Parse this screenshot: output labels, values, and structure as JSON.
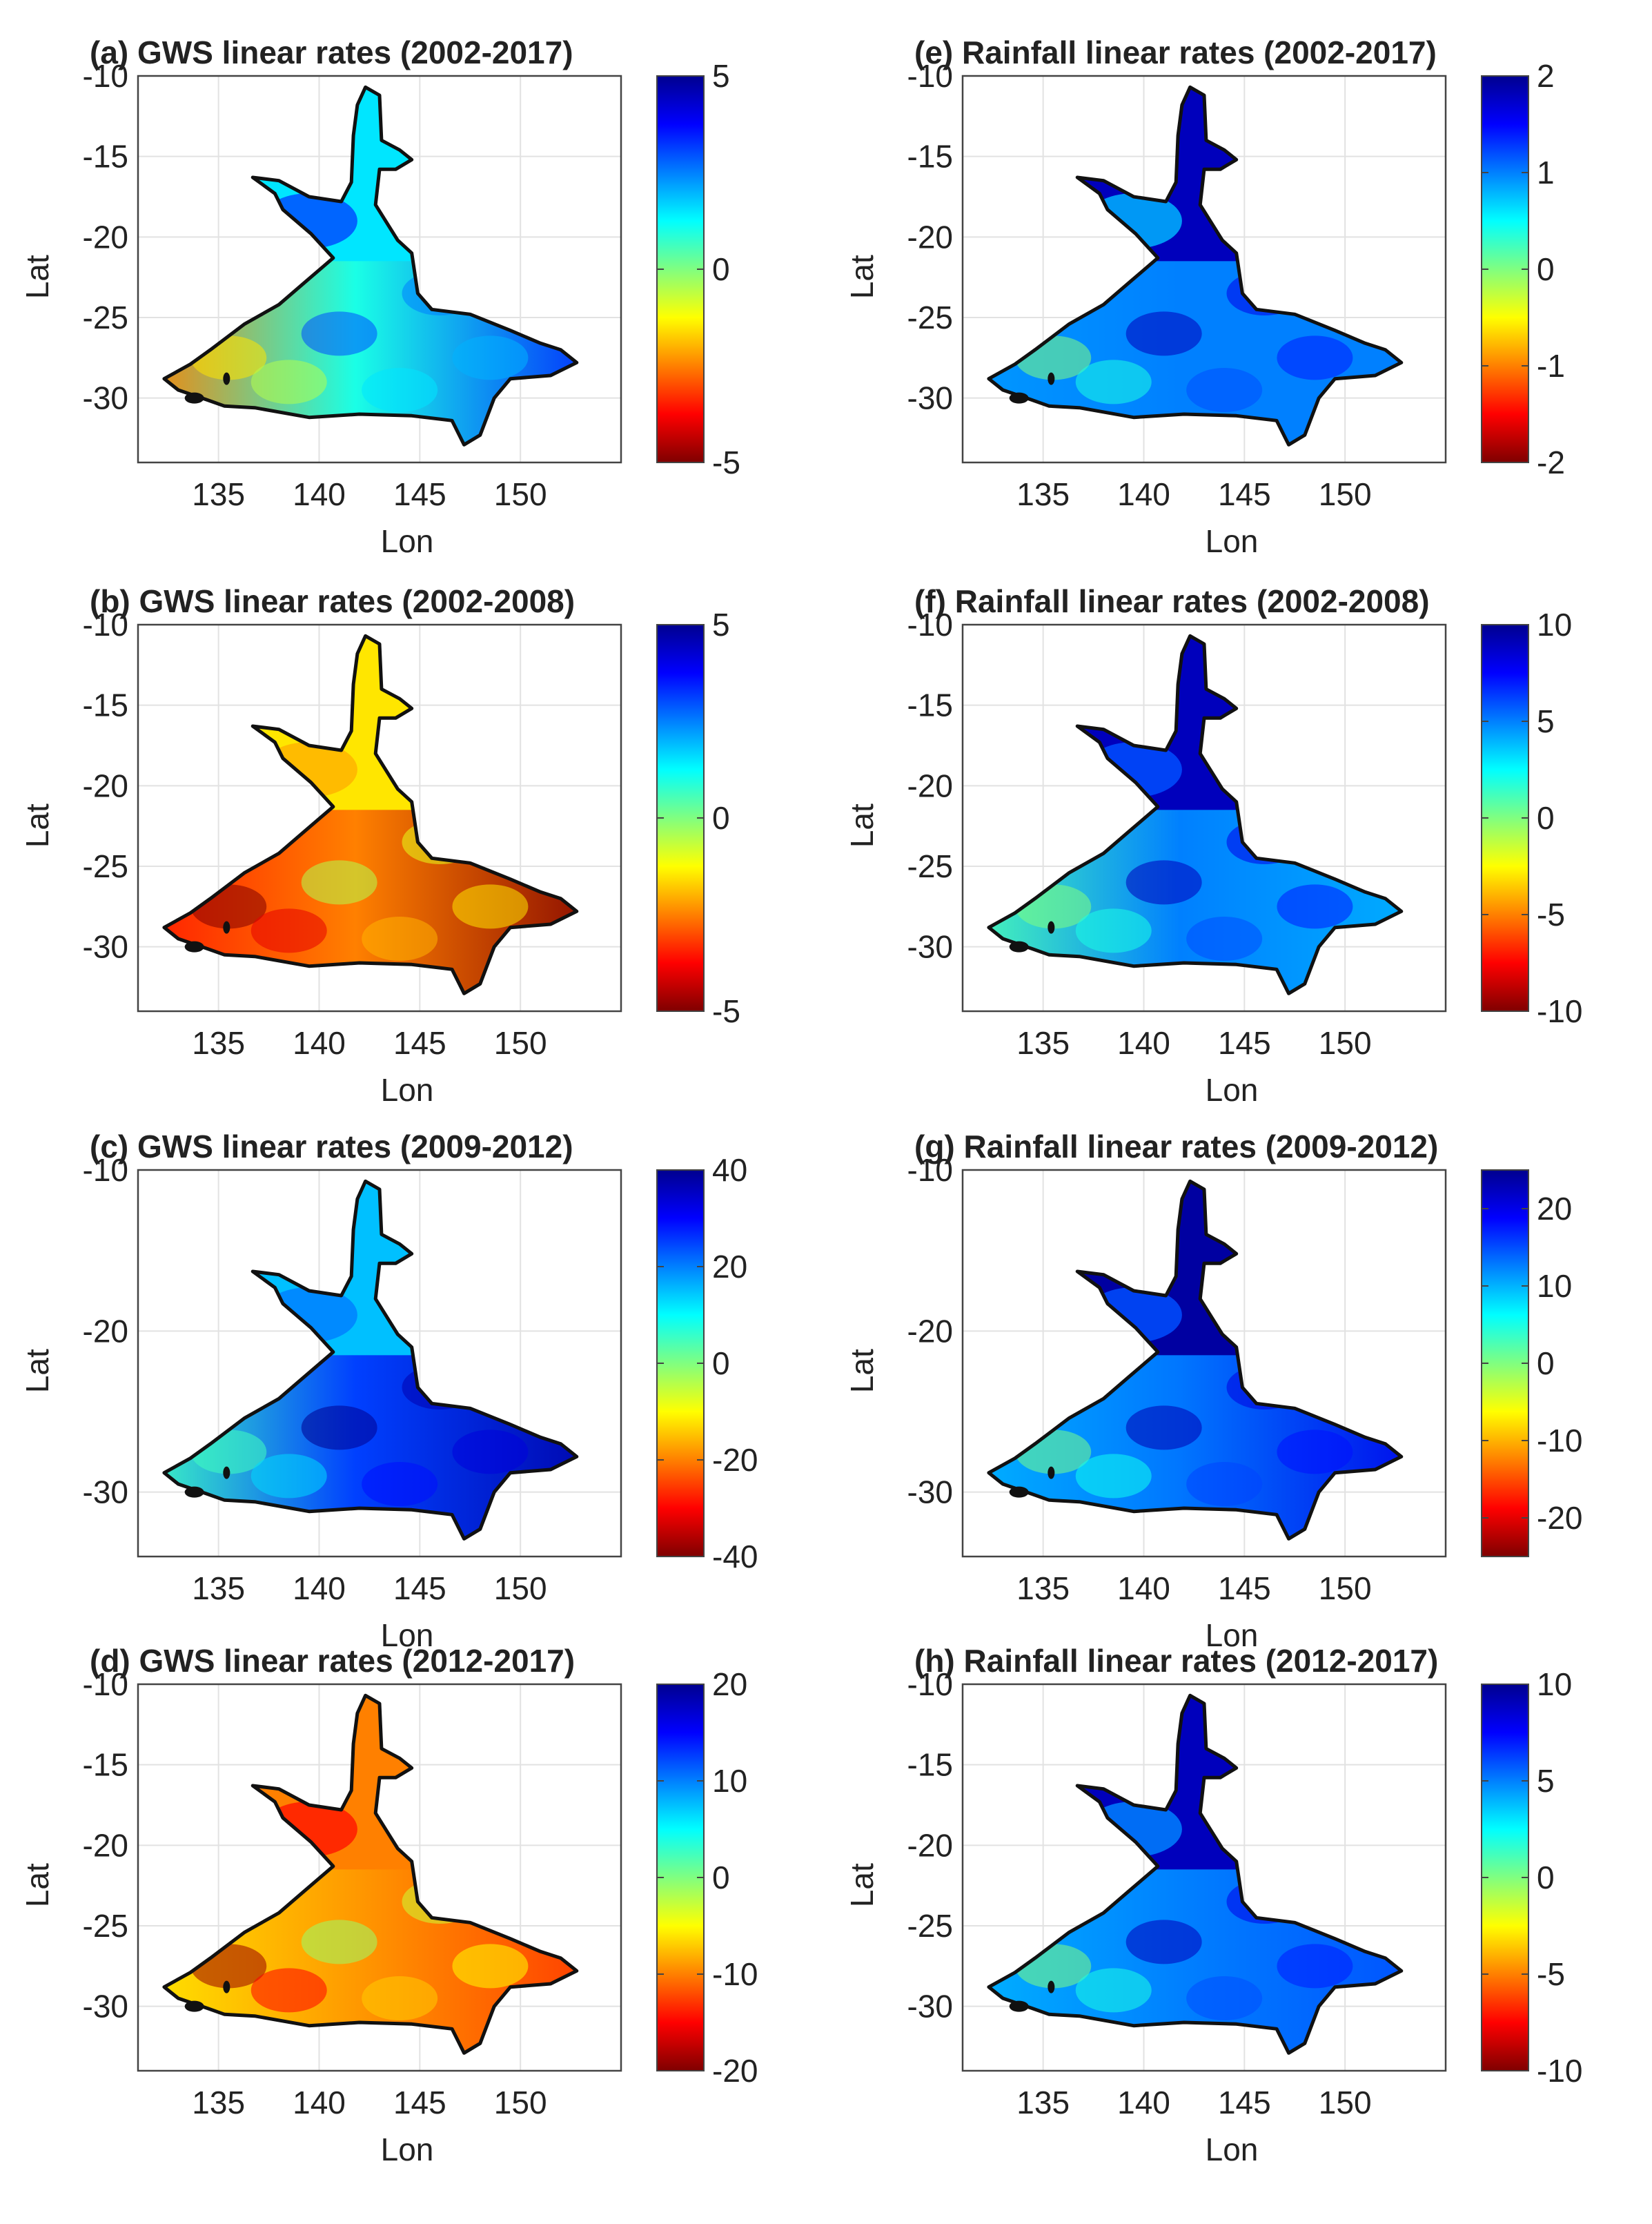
{
  "chart_data": [
    {
      "id": "a",
      "type": "heatmap",
      "title": "(a) GWS linear rates (2002-2017)",
      "xlabel": "Lon",
      "ylabel": "Lat",
      "xlim": [
        131,
        155
      ],
      "ylim": [
        -34,
        -10
      ],
      "xticks": [
        "135",
        "140",
        "145",
        "150"
      ],
      "yticks": [
        "-10",
        "-15",
        "-20",
        "-25",
        "-30"
      ],
      "colorbar": {
        "ticks": [
          "5",
          "0",
          "-5"
        ],
        "range": [
          -5,
          5
        ]
      },
      "field_summary": {
        "west": -2.5,
        "north": 1.5,
        "east": 3.5,
        "center": 1.0,
        "northwest": 3.0
      }
    },
    {
      "id": "b",
      "type": "heatmap",
      "title": "(b) GWS linear rates (2002-2008)",
      "xlabel": "Lon",
      "ylabel": "Lat",
      "xlim": [
        131,
        155
      ],
      "ylim": [
        -34,
        -10
      ],
      "xticks": [
        "135",
        "140",
        "145",
        "150"
      ],
      "yticks": [
        "-10",
        "-15",
        "-20",
        "-25",
        "-30"
      ],
      "colorbar": {
        "ticks": [
          "5",
          "0",
          "-5"
        ],
        "range": [
          -5,
          5
        ]
      },
      "field_summary": {
        "west": -3.5,
        "north": -1.5,
        "east": -5.0,
        "center": -2.5,
        "northwest": -2.0
      }
    },
    {
      "id": "c",
      "type": "heatmap",
      "title": "(c) GWS linear rates (2009-2012)",
      "xlabel": "Lon",
      "ylabel": "Lat",
      "xlim": [
        131,
        155
      ],
      "ylim": [
        -34,
        -10
      ],
      "xticks": [
        "135",
        "140",
        "145",
        "150"
      ],
      "yticks": [
        "-10",
        "-20",
        "-30"
      ],
      "colorbar": {
        "ticks": [
          "40",
          "20",
          "0",
          "-20",
          "-40"
        ],
        "range": [
          -40,
          40
        ]
      },
      "field_summary": {
        "west": 5,
        "north": 15,
        "east": 38,
        "center": 25,
        "northwest": 20
      }
    },
    {
      "id": "d",
      "type": "heatmap",
      "title": "(d) GWS linear rates (2012-2017)",
      "xlabel": "Lon",
      "ylabel": "Lat",
      "xlim": [
        131,
        155
      ],
      "ylim": [
        -34,
        -10
      ],
      "xticks": [
        "135",
        "140",
        "145",
        "150"
      ],
      "yticks": [
        "-10",
        "-15",
        "-20",
        "-25",
        "-30"
      ],
      "colorbar": {
        "ticks": [
          "20",
          "10",
          "0",
          "-10",
          "-20"
        ],
        "range": [
          -20,
          20
        ]
      },
      "field_summary": {
        "west": -6,
        "north": -10,
        "east": -13,
        "center": -9,
        "northwest": -14
      }
    },
    {
      "id": "e",
      "type": "heatmap",
      "title": "(e) Rainfall linear rates (2002-2017)",
      "xlabel": "Lon",
      "ylabel": "Lat",
      "xlim": [
        131,
        155
      ],
      "ylim": [
        -34,
        -10
      ],
      "xticks": [
        "135",
        "140",
        "145",
        "150"
      ],
      "yticks": [
        "-10",
        "-15",
        "-20",
        "-25",
        "-30"
      ],
      "colorbar": {
        "ticks": [
          "2",
          "1",
          "0",
          "-1",
          "-2"
        ],
        "range": [
          -2,
          2
        ]
      },
      "field_summary": {
        "west": 0.9,
        "north": 1.8,
        "east": 1.0,
        "center": 1.0,
        "northwest": 0.8
      }
    },
    {
      "id": "f",
      "type": "heatmap",
      "title": "(f) Rainfall linear rates (2002-2008)",
      "xlabel": "Lon",
      "ylabel": "Lat",
      "xlim": [
        131,
        155
      ],
      "ylim": [
        -34,
        -10
      ],
      "xticks": [
        "135",
        "140",
        "145",
        "150"
      ],
      "yticks": [
        "-10",
        "-15",
        "-20",
        "-25",
        "-30"
      ],
      "colorbar": {
        "ticks": [
          "10",
          "5",
          "0",
          "-5",
          "-10"
        ],
        "range": [
          -10,
          10
        ]
      },
      "field_summary": {
        "west": 1,
        "north": 9,
        "east": 4,
        "center": 5,
        "northwest": 6
      }
    },
    {
      "id": "g",
      "type": "heatmap",
      "title": "(g) Rainfall linear rates (2009-2012)",
      "xlabel": "Lon",
      "ylabel": "Lat",
      "xlim": [
        131,
        155
      ],
      "ylim": [
        -34,
        -10
      ],
      "xticks": [
        "135",
        "140",
        "145",
        "150"
      ],
      "yticks": [
        "-10",
        "-20",
        "-30"
      ],
      "colorbar": {
        "ticks": [
          "20",
          "10",
          "0",
          "-10",
          "-20"
        ],
        "range": [
          -25,
          25
        ]
      },
      "field_summary": {
        "west": 10,
        "north": 24,
        "east": 20,
        "center": 13,
        "northwest": 15
      }
    },
    {
      "id": "h",
      "type": "heatmap",
      "title": "(h) Rainfall linear rates (2012-2017)",
      "xlabel": "Lon",
      "ylabel": "Lat",
      "xlim": [
        131,
        155
      ],
      "ylim": [
        -34,
        -10
      ],
      "xticks": [
        "135",
        "140",
        "145",
        "150"
      ],
      "yticks": [
        "-10",
        "-15",
        "-20",
        "-25",
        "-30"
      ],
      "colorbar": {
        "ticks": [
          "10",
          "5",
          "0",
          "-5",
          "-10"
        ],
        "range": [
          -10,
          10
        ]
      },
      "field_summary": {
        "west": 4,
        "north": 9,
        "east": 6,
        "center": 5,
        "northwest": 5
      }
    }
  ],
  "colormap": [
    "#7f0000",
    "#ff0000",
    "#ff8000",
    "#ffff00",
    "#80ff80",
    "#00ffff",
    "#0080ff",
    "#0000ff",
    "#00008f"
  ],
  "basin_outline": [
    [
      142.3,
      -10.7
    ],
    [
      143.0,
      -11.2
    ],
    [
      143.1,
      -14.0
    ],
    [
      144.0,
      -14.6
    ],
    [
      144.6,
      -15.2
    ],
    [
      143.8,
      -15.8
    ],
    [
      143.0,
      -15.8
    ],
    [
      142.8,
      -18.0
    ],
    [
      143.9,
      -20.2
    ],
    [
      144.6,
      -21.0
    ],
    [
      144.9,
      -23.5
    ],
    [
      145.6,
      -24.5
    ],
    [
      147.5,
      -24.8
    ],
    [
      149.5,
      -25.8
    ],
    [
      151.0,
      -26.6
    ],
    [
      152.0,
      -27.0
    ],
    [
      152.8,
      -27.8
    ],
    [
      151.5,
      -28.6
    ],
    [
      149.5,
      -28.8
    ],
    [
      148.7,
      -30.0
    ],
    [
      148.0,
      -32.3
    ],
    [
      147.2,
      -32.9
    ],
    [
      146.6,
      -31.4
    ],
    [
      144.6,
      -31.1
    ],
    [
      142.0,
      -31.0
    ],
    [
      139.5,
      -31.2
    ],
    [
      136.8,
      -30.6
    ],
    [
      135.3,
      -30.5
    ],
    [
      134.4,
      -30.1
    ],
    [
      133.0,
      -29.5
    ],
    [
      132.3,
      -28.8
    ],
    [
      133.6,
      -27.9
    ],
    [
      134.6,
      -27.0
    ],
    [
      136.3,
      -25.4
    ],
    [
      138.0,
      -24.2
    ],
    [
      139.3,
      -22.8
    ],
    [
      140.7,
      -21.3
    ],
    [
      139.6,
      -19.8
    ],
    [
      138.2,
      -18.3
    ],
    [
      137.8,
      -17.3
    ],
    [
      136.7,
      -16.3
    ],
    [
      138.0,
      -16.5
    ],
    [
      139.5,
      -17.5
    ],
    [
      141.1,
      -17.8
    ],
    [
      141.6,
      -16.6
    ],
    [
      141.7,
      -13.7
    ],
    [
      141.9,
      -11.8
    ]
  ]
}
